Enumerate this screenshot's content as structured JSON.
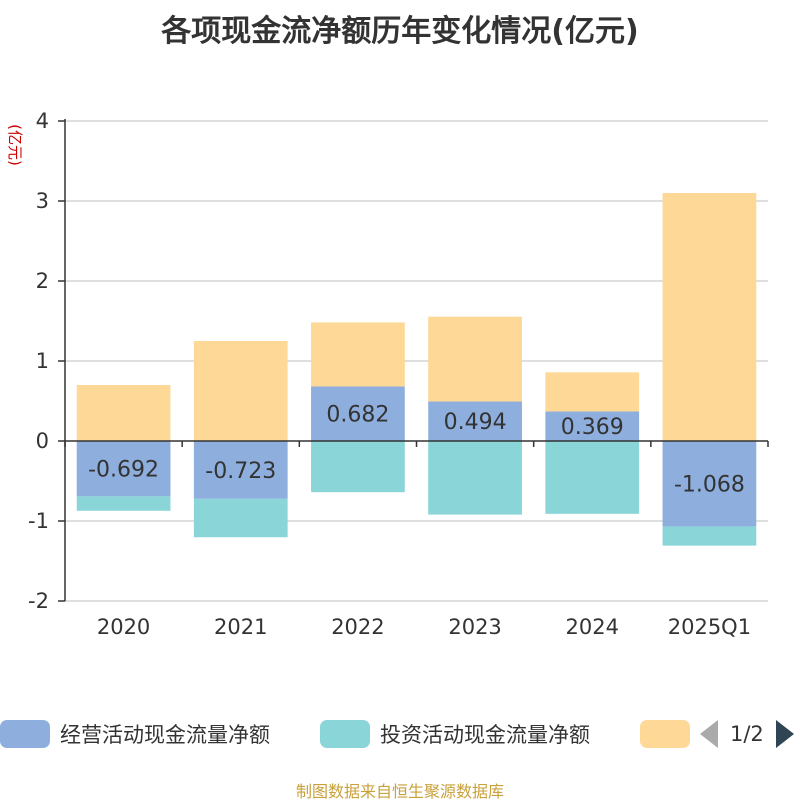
{
  "title": "各项现金流净额历年变化情况(亿元)",
  "source": "制图数据来自恒生聚源数据库",
  "chart_data": {
    "type": "bar",
    "stacked": true,
    "ylabel": "(亿元)",
    "ylim": [
      -2,
      4
    ],
    "yticks": [
      -2,
      -1,
      0,
      1,
      2,
      3,
      4
    ],
    "grid": true,
    "categories": [
      "2020",
      "2021",
      "2022",
      "2023",
      "2024",
      "2025Q1"
    ],
    "series": [
      {
        "name": "经营活动现金流量净额",
        "color": "#8eaedd",
        "values": [
          -0.692,
          -0.723,
          0.682,
          0.494,
          0.369,
          -1.068
        ],
        "labels": [
          "-0.692",
          "-0.723",
          "0.682",
          "0.494",
          "0.369",
          "-1.068"
        ]
      },
      {
        "name": "投资活动现金流量净额",
        "color": "#89d5d8",
        "values": [
          -0.18,
          -0.48,
          -0.64,
          -0.92,
          -0.91,
          -0.24
        ]
      },
      {
        "name": "",
        "color": "#fdd896",
        "values": [
          0.7,
          1.25,
          0.8,
          1.06,
          0.49,
          3.1
        ]
      }
    ],
    "legend": {
      "position": "bottom",
      "page": "1/2"
    }
  }
}
